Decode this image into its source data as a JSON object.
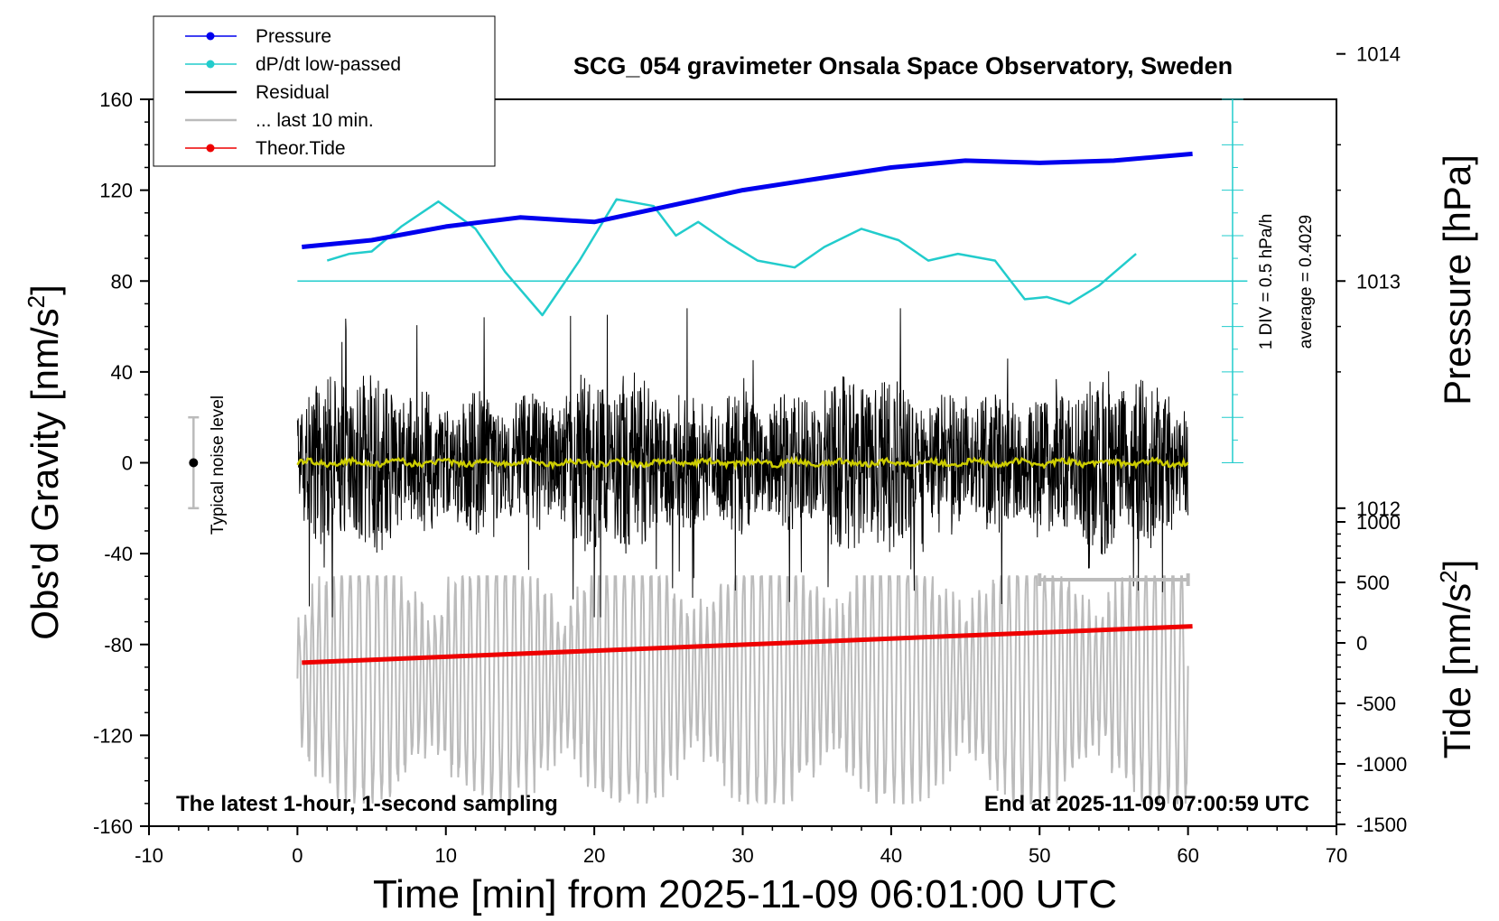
{
  "chart_data": {
    "type": "line",
    "title": "SCG_054 gravimeter Onsala Space Observatory, Sweden",
    "xlabel": "Time [min] from 2025-11-09 06:01:00 UTC",
    "ylabel_left": "Obs'd Gravity [nm/s",
    "ylabel_right_pressure": "Pressure [hPa]",
    "ylabel_right_tide": "Tide [nm/s",
    "superscript": "2",
    "xlim": [
      -10,
      70
    ],
    "ylim": [
      -160,
      160
    ],
    "x_ticks": [
      "-10",
      "0",
      "10",
      "20",
      "30",
      "40",
      "50",
      "60",
      "70"
    ],
    "y_ticks": [
      "160",
      "120",
      "80",
      "40",
      "0",
      "-40",
      "-80",
      "-120",
      "-160"
    ],
    "pressure_axis": {
      "ticks": [
        "1014",
        "1013",
        "1012"
      ],
      "values": [
        1014,
        1013,
        1012
      ]
    },
    "tide_axis": {
      "ticks": [
        "1000",
        "500",
        "0",
        "-500",
        "-1000",
        "-1500"
      ],
      "values": [
        1000,
        500,
        0,
        -500,
        -1000,
        -1500
      ]
    },
    "legend": {
      "placement": "top-left",
      "entries": [
        {
          "label": "Pressure",
          "color": "#0000ee",
          "marker": true
        },
        {
          "label": "dP/dt low-passed",
          "color": "#22cccc",
          "marker": true
        },
        {
          "label": "Residual",
          "color": "#000000",
          "marker": false
        },
        {
          "label": "... last 10 min.",
          "color": "#bbbbbb",
          "marker": false
        },
        {
          "label": "Theor.Tide",
          "color": "#ee0000",
          "marker": true
        }
      ]
    },
    "annotations": {
      "noise_label": "Typical noise level",
      "scale_label": "1 DIV = 0.5 hPa/h",
      "average_label": "average = 0.4029",
      "bottom_left": "The latest 1-hour, 1-second sampling",
      "bottom_right": "End at 2025-11-09 07:00:59 UTC"
    },
    "series": [
      {
        "name": "Pressure",
        "color": "#0000ee",
        "unit": "hPa",
        "x": [
          0.3,
          5,
          10,
          15,
          20,
          25,
          30,
          35,
          40,
          45,
          50,
          55,
          60.3
        ],
        "values": [
          1013.15,
          1013.18,
          1013.24,
          1013.28,
          1013.26,
          1013.33,
          1013.4,
          1013.45,
          1013.5,
          1013.53,
          1013.52,
          1013.53,
          1013.56
        ]
      },
      {
        "name": "dP/dt low-passed",
        "color": "#22cccc",
        "unit": "nm/s2 plot scale",
        "x": [
          2,
          3.5,
          5,
          7,
          9.5,
          12,
          14,
          16.5,
          19,
          21.5,
          24,
          25.5,
          27,
          29,
          31,
          33.5,
          35.5,
          38,
          40.5,
          42.5,
          44.5,
          47,
          49,
          50.5,
          52,
          54,
          56.5
        ],
        "values": [
          89,
          92,
          93,
          104,
          115,
          103,
          84,
          65,
          89,
          116,
          113,
          100,
          106,
          97,
          89,
          86,
          95,
          103,
          98,
          89,
          92,
          89,
          72,
          73,
          70,
          78,
          92
        ]
      },
      {
        "name": "Residual",
        "color": "#000000",
        "unit": "nm/s2",
        "x": [
          0,
          60
        ],
        "envelope": 20,
        "peak_max": 68,
        "peak_min": -68,
        "low_passed_color": "#cccc00"
      },
      {
        "name": "... last 10 min.",
        "color": "#bbbbbb",
        "unit": "nm/s2",
        "x": [
          50,
          60
        ],
        "center": -95,
        "amplitude_range": [
          -150,
          -50
        ]
      },
      {
        "name": "Theor.Tide",
        "color": "#ee0000",
        "unit": "nm/s2",
        "x": [
          0.3,
          60.3
        ],
        "values": [
          -88,
          -72
        ]
      }
    ]
  }
}
